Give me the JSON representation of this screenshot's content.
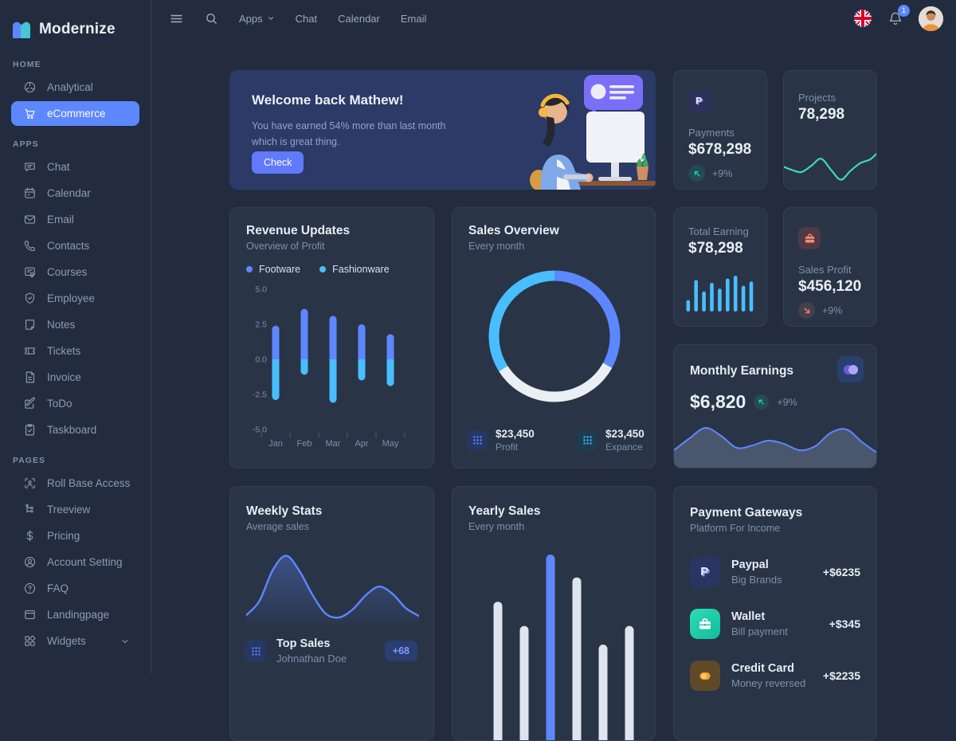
{
  "brand": {
    "name": "Modernize"
  },
  "topbar": {
    "nav": [
      {
        "label": "Apps"
      },
      {
        "label": "Chat"
      },
      {
        "label": "Calendar"
      },
      {
        "label": "Email"
      }
    ],
    "notification_count": "1"
  },
  "sidebar": {
    "sections": [
      {
        "title": "HOME",
        "items": [
          {
            "label": "Analytical"
          },
          {
            "label": "eCommerce"
          }
        ]
      },
      {
        "title": "APPS",
        "items": [
          {
            "label": "Chat"
          },
          {
            "label": "Calendar"
          },
          {
            "label": "Email"
          },
          {
            "label": "Contacts"
          },
          {
            "label": "Courses"
          },
          {
            "label": "Employee"
          },
          {
            "label": "Notes"
          },
          {
            "label": "Tickets"
          },
          {
            "label": "Invoice"
          },
          {
            "label": "ToDo"
          },
          {
            "label": "Taskboard"
          }
        ]
      },
      {
        "title": "PAGES",
        "items": [
          {
            "label": "Roll Base Access"
          },
          {
            "label": "Treeview"
          },
          {
            "label": "Pricing"
          },
          {
            "label": "Account Setting"
          },
          {
            "label": "FAQ"
          },
          {
            "label": "Landingpage"
          },
          {
            "label": "Widgets"
          }
        ]
      }
    ]
  },
  "banner": {
    "title": "Welcome back Mathew!",
    "subtitle": "You have earned 54% more than last month which is great thing.",
    "button_label": "Check"
  },
  "payments": {
    "label": "Payments",
    "value": "$678,298",
    "delta": "+9%"
  },
  "projects": {
    "label": "Projects",
    "value": "78,298"
  },
  "revenue_updates": {
    "title": "Revenue Updates",
    "subtitle": "Overview of Profit",
    "legend": [
      {
        "label": "Footware"
      },
      {
        "label": "Fashionware"
      }
    ]
  },
  "sales_overview": {
    "title": "Sales Overview",
    "subtitle": "Every month",
    "stats": [
      {
        "value": "$23,450",
        "label": "Profit"
      },
      {
        "value": "$23,450",
        "label": "Expance"
      }
    ]
  },
  "total_earning": {
    "label": "Total Earning",
    "value": "$78,298"
  },
  "sales_profit": {
    "label": "Sales Profit",
    "value": "$456,120",
    "delta": "+9%"
  },
  "monthly_earnings": {
    "title": "Monthly Earnings",
    "value": "$6,820",
    "delta": "+9%"
  },
  "weekly_stats": {
    "title": "Weekly Stats",
    "subtitle": "Average sales",
    "highlight": {
      "title": "Top Sales",
      "subtitle": "Johnathan Doe",
      "badge": "+68"
    }
  },
  "yearly_sales": {
    "title": "Yearly Sales",
    "subtitle": "Every month"
  },
  "payment_gateways": {
    "title": "Payment Gateways",
    "subtitle": "Platform For Income",
    "rows": [
      {
        "name": "Paypal",
        "desc": "Big Brands",
        "amount": "+$6235"
      },
      {
        "name": "Wallet",
        "desc": "Bill payment",
        "amount": "+$345"
      },
      {
        "name": "Credit Card",
        "desc": "Money reversed",
        "amount": "+$2235"
      }
    ]
  },
  "colors": {
    "primary": "#5D87FF",
    "secondary": "#49BEFF",
    "success": "#13DEB9",
    "warning": "#FFAE1F",
    "error": "#FA896B",
    "card": "#2A3447",
    "muted": "#7C8FAC"
  },
  "chart_data": [
    {
      "id": "revenue-updates",
      "type": "bar",
      "title": "Revenue Updates",
      "categories": [
        "Jan",
        "Feb",
        "Mar",
        "Apr",
        "May"
      ],
      "series": [
        {
          "name": "Footware",
          "color": "#5D87FF",
          "values": [
            2.4,
            3.6,
            3.1,
            2.5,
            1.8
          ]
        },
        {
          "name": "Fashionware",
          "color": "#49BEFF",
          "values": [
            -2.9,
            -1.1,
            -3.1,
            -1.5,
            -1.9
          ]
        }
      ],
      "ylim": [
        -5,
        5
      ],
      "yticks": [
        "5.0",
        "2.5",
        "0.0",
        "-2.5",
        "-5.0"
      ],
      "grid": false,
      "legend_position": "top"
    },
    {
      "id": "sales-overview",
      "type": "pie",
      "title": "Sales Overview",
      "donut": true,
      "segments": [
        {
          "value": 33,
          "color": "#5D87FF"
        },
        {
          "value": 33,
          "color": "#EAEFF4"
        },
        {
          "value": 34,
          "color": "#49BEFF"
        }
      ]
    },
    {
      "id": "projects-trend",
      "type": "line",
      "color": "#3DD9B3",
      "values": [
        38,
        30,
        25,
        38,
        53,
        30,
        9,
        28,
        44,
        52,
        72
      ]
    },
    {
      "id": "total-earning",
      "type": "bar",
      "color": "#49BEFF",
      "values": [
        32,
        88,
        56,
        80,
        64,
        92,
        100,
        72,
        84
      ]
    },
    {
      "id": "monthly-earnings",
      "type": "area",
      "color": "#5D87FF",
      "fill": "rgba(124,143,172,0.38)",
      "values": [
        28,
        58,
        84,
        64,
        34,
        40,
        52,
        44,
        28,
        38,
        72,
        80,
        48,
        20
      ]
    },
    {
      "id": "weekly-stats",
      "type": "area",
      "color": "#5D87FF",
      "values": [
        12,
        32,
        75,
        95,
        74,
        40,
        14,
        9,
        20,
        40,
        52,
        42,
        22,
        11
      ]
    },
    {
      "id": "yearly-sales",
      "type": "bar",
      "color": "#DFE5EF",
      "highlight_color": "#5D87FF",
      "highlight_index": 2,
      "values": [
        55,
        38,
        88,
        72,
        25,
        38
      ]
    }
  ]
}
